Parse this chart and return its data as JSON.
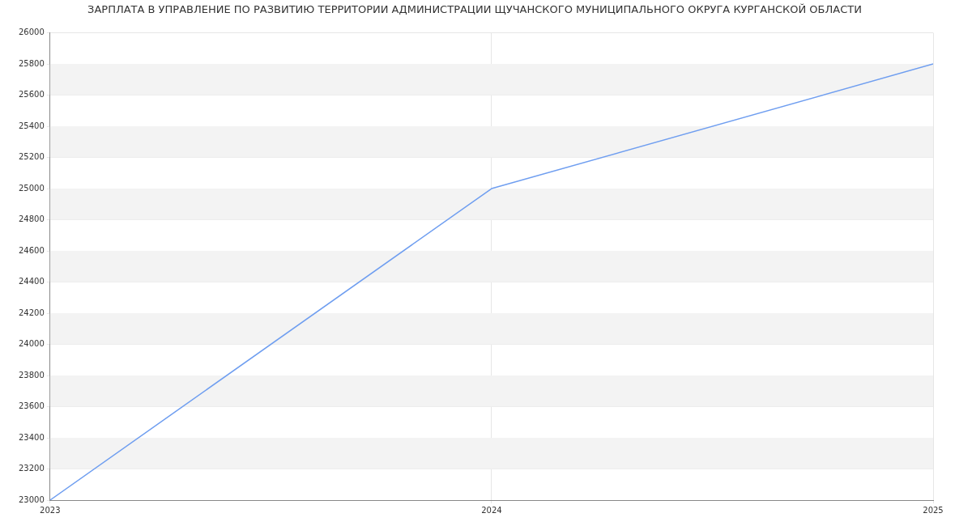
{
  "chart_data": {
    "type": "line",
    "title": "ЗАРПЛАТА В УПРАВЛЕНИЕ ПО РАЗВИТИЮ ТЕРРИТОРИИ АДМИНИСТРАЦИИ ЩУЧАНСКОГО МУНИЦИПАЛЬНОГО ОКРУГА КУРГАНСКОЙ ОБЛАСТИ",
    "x": [
      2023,
      2024,
      2025
    ],
    "series": [
      {
        "color": "#6f9ef0",
        "values": [
          23000,
          25000,
          25800
        ]
      }
    ],
    "xlim": [
      2023,
      2025
    ],
    "xticks": [
      2023,
      2024,
      2025
    ],
    "ylim": [
      23000,
      26000
    ],
    "yticks": [
      23000,
      23200,
      23400,
      23600,
      23800,
      24000,
      24200,
      24400,
      24600,
      24800,
      25000,
      25200,
      25400,
      25600,
      25800,
      26000
    ],
    "grid": true,
    "legend": false,
    "marker": "none",
    "line_style": "solid"
  }
}
